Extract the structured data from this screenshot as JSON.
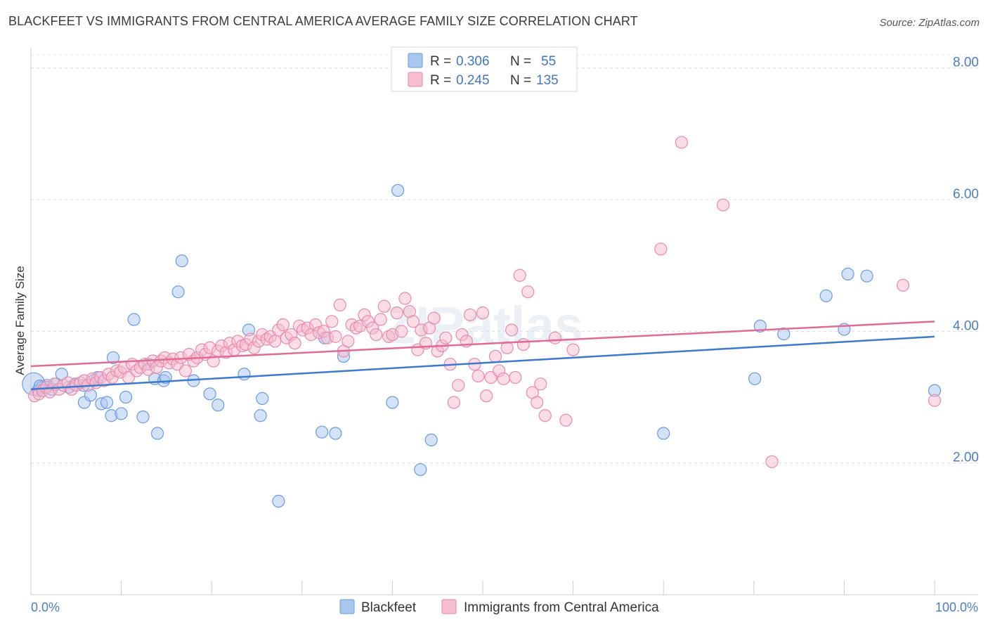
{
  "title": "BLACKFEET VS IMMIGRANTS FROM CENTRAL AMERICA AVERAGE FAMILY SIZE CORRELATION CHART",
  "source": "Source: ZipAtlas.com",
  "watermark": "ZIPatlas",
  "legend": {
    "r_label": "R =",
    "n_label": "N =",
    "rows": [
      {
        "r": "0.306",
        "n": "55",
        "color": "#a9c6ef",
        "stroke": "#6b9ae0"
      },
      {
        "r": "0.245",
        "n": "135",
        "color": "#f6bcd0",
        "stroke": "#e98aaa"
      }
    ]
  },
  "bottom_legend": [
    "Blackfeet",
    "Immigrants from Central America"
  ],
  "x_labels": {
    "left": "0.0%",
    "right": "100.0%"
  },
  "chart_data": {
    "type": "scatter",
    "title": "BLACKFEET VS IMMIGRANTS FROM CENTRAL AMERICA AVERAGE FAMILY SIZE CORRELATION CHART",
    "ylabel": "Average Family Size",
    "xlim": [
      0,
      100
    ],
    "ylim": [
      0,
      8.2
    ],
    "yticks": [
      2.0,
      4.0,
      6.0,
      8.0
    ],
    "ytick_labels": [
      "2.00",
      "4.00",
      "6.00",
      "8.00"
    ],
    "grid": true,
    "legend_position": "top-center",
    "series": [
      {
        "name": "Blackfeet",
        "fill": "#a9c6ef",
        "stroke": "#6b9ae0",
        "trend_color": "#3b7ad0",
        "trend": [
          [
            0,
            3.12
          ],
          [
            100,
            3.92
          ]
        ],
        "points": [
          [
            0.3,
            3.2
          ],
          [
            0.8,
            3.1
          ],
          [
            1.2,
            3.15
          ],
          [
            1.8,
            3.18
          ],
          [
            2.3,
            3.12
          ],
          [
            2.8,
            3.2
          ],
          [
            3.4,
            3.35
          ],
          [
            4.2,
            3.15
          ],
          [
            4.9,
            3.2
          ],
          [
            5.8,
            3.18
          ],
          [
            5.9,
            2.92
          ],
          [
            6.6,
            3.03
          ],
          [
            7.4,
            3.3
          ],
          [
            7.8,
            2.9
          ],
          [
            8.4,
            2.92
          ],
          [
            8.9,
            2.72
          ],
          [
            9.1,
            3.6
          ],
          [
            10.0,
            2.75
          ],
          [
            10.5,
            3.0
          ],
          [
            11.4,
            4.18
          ],
          [
            12.4,
            2.7
          ],
          [
            13.0,
            3.5
          ],
          [
            13.7,
            3.28
          ],
          [
            14.0,
            2.45
          ],
          [
            14.7,
            3.25
          ],
          [
            14.9,
            3.3
          ],
          [
            16.3,
            4.6
          ],
          [
            16.7,
            5.07
          ],
          [
            18.0,
            3.25
          ],
          [
            19.8,
            3.05
          ],
          [
            20.7,
            2.88
          ],
          [
            23.6,
            3.35
          ],
          [
            24.1,
            4.02
          ],
          [
            25.4,
            2.72
          ],
          [
            25.6,
            2.98
          ],
          [
            27.4,
            1.42
          ],
          [
            32.2,
            2.47
          ],
          [
            32.5,
            3.9
          ],
          [
            33.7,
            2.45
          ],
          [
            34.6,
            3.62
          ],
          [
            40.0,
            2.92
          ],
          [
            40.6,
            6.14
          ],
          [
            43.1,
            1.9
          ],
          [
            44.3,
            2.35
          ],
          [
            70.0,
            2.45
          ],
          [
            80.1,
            3.28
          ],
          [
            80.7,
            4.08
          ],
          [
            83.3,
            3.96
          ],
          [
            88.0,
            4.54
          ],
          [
            90.0,
            4.03
          ],
          [
            90.4,
            4.87
          ],
          [
            92.5,
            4.84
          ],
          [
            100.0,
            3.1
          ],
          [
            1.0,
            3.17
          ],
          [
            6.9,
            3.25
          ]
        ]
      },
      {
        "name": "Immigrants from Central America",
        "fill": "#f6bcd0",
        "stroke": "#e98aaa",
        "trend_color": "#e16b94",
        "trend": [
          [
            0,
            3.47
          ],
          [
            100,
            4.15
          ]
        ],
        "points": [
          [
            0.4,
            3.02
          ],
          [
            0.9,
            3.05
          ],
          [
            1.3,
            3.1
          ],
          [
            1.7,
            3.15
          ],
          [
            2.1,
            3.08
          ],
          [
            2.6,
            3.2
          ],
          [
            3.1,
            3.12
          ],
          [
            3.6,
            3.18
          ],
          [
            4.1,
            3.22
          ],
          [
            4.5,
            3.12
          ],
          [
            5.0,
            3.18
          ],
          [
            5.5,
            3.22
          ],
          [
            5.9,
            3.25
          ],
          [
            6.3,
            3.18
          ],
          [
            6.8,
            3.28
          ],
          [
            7.2,
            3.22
          ],
          [
            7.7,
            3.3
          ],
          [
            8.1,
            3.25
          ],
          [
            8.6,
            3.35
          ],
          [
            9.0,
            3.3
          ],
          [
            9.5,
            3.4
          ],
          [
            9.9,
            3.38
          ],
          [
            10.3,
            3.45
          ],
          [
            10.8,
            3.3
          ],
          [
            11.2,
            3.5
          ],
          [
            11.7,
            3.4
          ],
          [
            12.1,
            3.45
          ],
          [
            12.6,
            3.5
          ],
          [
            13.0,
            3.42
          ],
          [
            13.5,
            3.55
          ],
          [
            13.9,
            3.45
          ],
          [
            14.4,
            3.55
          ],
          [
            14.8,
            3.6
          ],
          [
            15.3,
            3.52
          ],
          [
            15.7,
            3.58
          ],
          [
            16.2,
            3.5
          ],
          [
            16.6,
            3.6
          ],
          [
            17.1,
            3.4
          ],
          [
            17.5,
            3.65
          ],
          [
            18.0,
            3.55
          ],
          [
            18.4,
            3.6
          ],
          [
            18.9,
            3.72
          ],
          [
            19.3,
            3.65
          ],
          [
            19.8,
            3.75
          ],
          [
            20.2,
            3.55
          ],
          [
            20.7,
            3.7
          ],
          [
            21.1,
            3.78
          ],
          [
            21.6,
            3.68
          ],
          [
            22.0,
            3.82
          ],
          [
            22.5,
            3.72
          ],
          [
            22.9,
            3.85
          ],
          [
            23.4,
            3.78
          ],
          [
            23.8,
            3.8
          ],
          [
            24.3,
            3.88
          ],
          [
            24.7,
            3.75
          ],
          [
            25.2,
            3.85
          ],
          [
            25.6,
            3.95
          ],
          [
            26.1,
            3.88
          ],
          [
            26.5,
            3.92
          ],
          [
            27.0,
            3.85
          ],
          [
            27.4,
            4.02
          ],
          [
            27.9,
            4.1
          ],
          [
            28.3,
            3.9
          ],
          [
            28.8,
            3.95
          ],
          [
            29.2,
            3.82
          ],
          [
            29.7,
            4.08
          ],
          [
            30.1,
            4.02
          ],
          [
            30.6,
            4.05
          ],
          [
            31.0,
            3.95
          ],
          [
            31.5,
            4.1
          ],
          [
            31.9,
            3.98
          ],
          [
            32.4,
            4.0
          ],
          [
            32.8,
            3.9
          ],
          [
            33.3,
            4.15
          ],
          [
            33.7,
            3.92
          ],
          [
            34.2,
            4.4
          ],
          [
            34.6,
            3.7
          ],
          [
            35.1,
            3.85
          ],
          [
            35.5,
            4.1
          ],
          [
            36.0,
            4.05
          ],
          [
            36.4,
            4.08
          ],
          [
            36.9,
            4.25
          ],
          [
            37.3,
            4.15
          ],
          [
            37.8,
            4.05
          ],
          [
            38.2,
            3.95
          ],
          [
            38.7,
            4.18
          ],
          [
            39.1,
            4.38
          ],
          [
            39.6,
            3.92
          ],
          [
            40.0,
            3.95
          ],
          [
            40.5,
            4.28
          ],
          [
            41.0,
            4.0
          ],
          [
            41.4,
            4.5
          ],
          [
            41.9,
            4.3
          ],
          [
            42.3,
            4.15
          ],
          [
            42.8,
            3.72
          ],
          [
            43.2,
            4.02
          ],
          [
            43.7,
            3.82
          ],
          [
            44.1,
            4.05
          ],
          [
            44.6,
            4.2
          ],
          [
            45.0,
            3.7
          ],
          [
            45.5,
            3.78
          ],
          [
            45.9,
            3.9
          ],
          [
            46.4,
            3.5
          ],
          [
            46.8,
            2.92
          ],
          [
            47.3,
            3.18
          ],
          [
            47.7,
            3.95
          ],
          [
            48.2,
            3.85
          ],
          [
            48.6,
            4.25
          ],
          [
            49.1,
            3.5
          ],
          [
            49.5,
            3.32
          ],
          [
            50.0,
            4.28
          ],
          [
            50.4,
            3.02
          ],
          [
            50.9,
            3.3
          ],
          [
            51.4,
            3.62
          ],
          [
            51.8,
            3.4
          ],
          [
            52.3,
            3.28
          ],
          [
            52.7,
            3.75
          ],
          [
            53.2,
            4.02
          ],
          [
            53.6,
            3.3
          ],
          [
            54.1,
            4.85
          ],
          [
            54.5,
            3.8
          ],
          [
            55.0,
            4.6
          ],
          [
            55.5,
            3.07
          ],
          [
            56.0,
            2.92
          ],
          [
            56.4,
            3.2
          ],
          [
            56.9,
            2.72
          ],
          [
            58.0,
            3.9
          ],
          [
            59.2,
            2.65
          ],
          [
            60.0,
            3.72
          ],
          [
            69.7,
            5.25
          ],
          [
            72.0,
            6.87
          ],
          [
            76.6,
            5.92
          ],
          [
            82.0,
            2.02
          ],
          [
            96.5,
            4.7
          ],
          [
            100.0,
            2.95
          ]
        ]
      }
    ]
  }
}
